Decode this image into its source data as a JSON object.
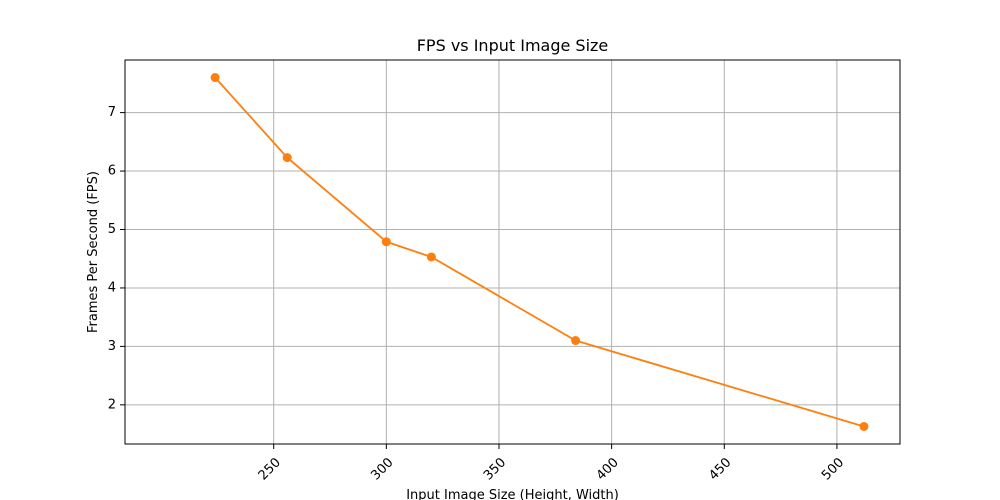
{
  "chart_data": {
    "type": "line",
    "title": "FPS vs Input Image Size",
    "xlabel": "Input Image Size (Height, Width)",
    "ylabel": "Frames Per Second (FPS)",
    "x": [
      224,
      256,
      300,
      320,
      384,
      512
    ],
    "series": [
      {
        "name": "",
        "values": [
          7.6,
          6.23,
          4.79,
          4.53,
          3.1,
          1.63
        ],
        "color": "#ff7f0e"
      }
    ],
    "xlim": [
      184,
      528
    ],
    "ylim": [
      1.33,
      7.9
    ],
    "xticks": [
      250,
      300,
      350,
      400,
      450,
      500
    ],
    "yticks": [
      2,
      3,
      4,
      5,
      6,
      7
    ],
    "grid": true,
    "x_tick_rotation": -45,
    "marker": "circle"
  }
}
